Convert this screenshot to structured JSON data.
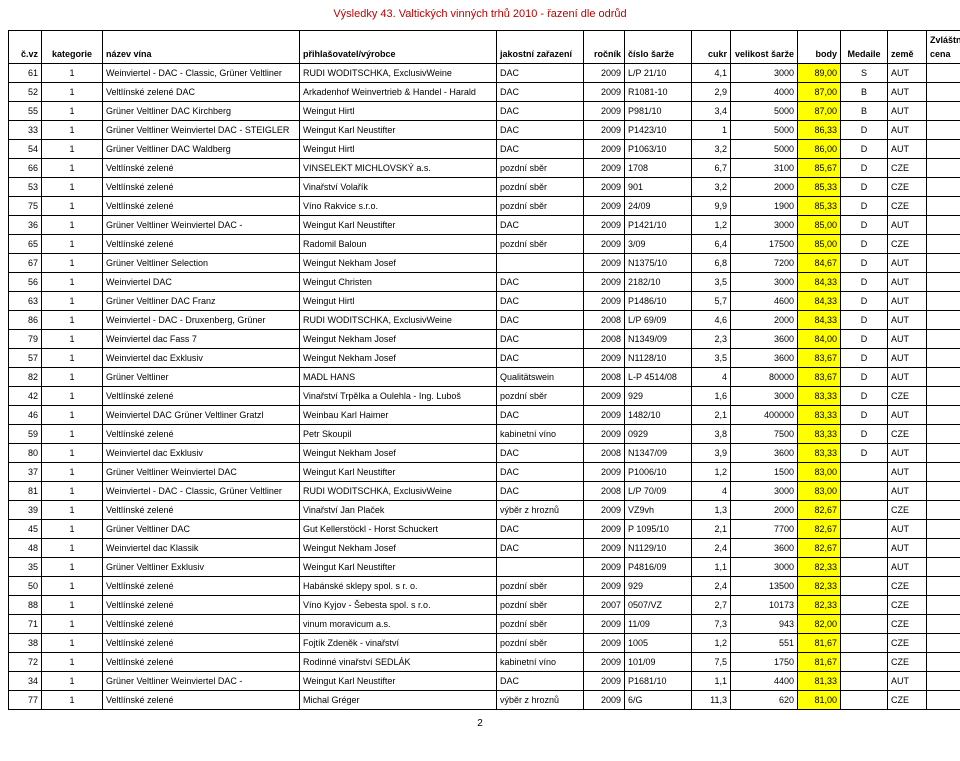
{
  "page_title": "Výsledky 43. Valtických vinných trhů 2010 - řazení dle odrůd",
  "page_number": "2",
  "colors": {
    "title_color": "#c00000",
    "body_cell_bg": "#ffff00",
    "border": "#000000"
  },
  "columns": [
    {
      "key": "cvz",
      "label": "č.vz",
      "class": "c-cvz"
    },
    {
      "key": "kat",
      "label": "kategorie",
      "class": "c-kat"
    },
    {
      "key": "nazev",
      "label": "název vína",
      "class": "c-nazev"
    },
    {
      "key": "prih",
      "label": "přihlašovatel/výrobce",
      "class": "c-prih"
    },
    {
      "key": "jak",
      "label": "jakostní zařazení",
      "class": "c-jak"
    },
    {
      "key": "roc",
      "label": "ročník",
      "class": "c-roc"
    },
    {
      "key": "sarz",
      "label": "číslo šarže",
      "class": "c-sarz"
    },
    {
      "key": "cukr",
      "label": "cukr",
      "class": "c-cukr"
    },
    {
      "key": "vel",
      "label": "velikost šarže",
      "class": "c-vel"
    },
    {
      "key": "body",
      "label": "body",
      "class": "c-body"
    },
    {
      "key": "med",
      "label": "Medaile",
      "class": "c-med"
    },
    {
      "key": "zeme",
      "label": "země",
      "class": "c-zeme"
    },
    {
      "key": "zvl",
      "label": "Zvláštní cena",
      "class": "c-zvl"
    }
  ],
  "rows": [
    {
      "cvz": "61",
      "kat": "1",
      "nazev": "Weinviertel - DAC - Classic, Grüner Veltliner",
      "prih": "RUDI WODITSCHKA, ExclusivWeine",
      "jak": "DAC",
      "roc": "2009",
      "sarz": "L/P 21/10",
      "cukr": "4,1",
      "vel": "3000",
      "body": "89,00",
      "med": "S",
      "zeme": "AUT",
      "zvl": ""
    },
    {
      "cvz": "52",
      "kat": "1",
      "nazev": "Veltlínské zelené DAC",
      "prih": "Arkadenhof Weinvertrieb & Handel - Harald",
      "jak": "DAC",
      "roc": "2009",
      "sarz": "R1081-10",
      "cukr": "2,9",
      "vel": "4000",
      "body": "87,00",
      "med": "B",
      "zeme": "AUT",
      "zvl": ""
    },
    {
      "cvz": "55",
      "kat": "1",
      "nazev": "Grüner Veltliner DAC Kirchberg",
      "prih": "Weingut Hirtl",
      "jak": "DAC",
      "roc": "2009",
      "sarz": "P981/10",
      "cukr": "3,4",
      "vel": "5000",
      "body": "87,00",
      "med": "B",
      "zeme": "AUT",
      "zvl": ""
    },
    {
      "cvz": "33",
      "kat": "1",
      "nazev": "Grüner Veltliner Weinviertel DAC - STEIGLER",
      "prih": "Weingut Karl Neustifter",
      "jak": "DAC",
      "roc": "2009",
      "sarz": "P1423/10",
      "cukr": "1",
      "vel": "5000",
      "body": "86,33",
      "med": "D",
      "zeme": "AUT",
      "zvl": ""
    },
    {
      "cvz": "54",
      "kat": "1",
      "nazev": "Grüner Veltliner DAC Waldberg",
      "prih": "Weingut Hirtl",
      "jak": "DAC",
      "roc": "2009",
      "sarz": "P1063/10",
      "cukr": "3,2",
      "vel": "5000",
      "body": "86,00",
      "med": "D",
      "zeme": "AUT",
      "zvl": ""
    },
    {
      "cvz": "66",
      "kat": "1",
      "nazev": "Veltlínské zelené",
      "prih": "VINSELEKT MICHLOVSKÝ a.s.",
      "jak": "pozdní sběr",
      "roc": "2009",
      "sarz": "1708",
      "cukr": "6,7",
      "vel": "3100",
      "body": "85,67",
      "med": "D",
      "zeme": "CZE",
      "zvl": ""
    },
    {
      "cvz": "53",
      "kat": "1",
      "nazev": "Veltlínské zelené",
      "prih": "Vinařství Volařík",
      "jak": "pozdní sběr",
      "roc": "2009",
      "sarz": "901",
      "cukr": "3,2",
      "vel": "2000",
      "body": "85,33",
      "med": "D",
      "zeme": "CZE",
      "zvl": ""
    },
    {
      "cvz": "75",
      "kat": "1",
      "nazev": "Veltlínské zelené",
      "prih": "Víno Rakvice s.r.o.",
      "jak": "pozdní sběr",
      "roc": "2009",
      "sarz": "24/09",
      "cukr": "9,9",
      "vel": "1900",
      "body": "85,33",
      "med": "D",
      "zeme": "CZE",
      "zvl": ""
    },
    {
      "cvz": "36",
      "kat": "1",
      "nazev": "Grüner Veltliner Weinviertel DAC -",
      "prih": "Weingut Karl Neustifter",
      "jak": "DAC",
      "roc": "2009",
      "sarz": "P1421/10",
      "cukr": "1,2",
      "vel": "3000",
      "body": "85,00",
      "med": "D",
      "zeme": "AUT",
      "zvl": ""
    },
    {
      "cvz": "65",
      "kat": "1",
      "nazev": "Veltlínské zelené",
      "prih": "Radomil Baloun",
      "jak": "pozdní sběr",
      "roc": "2009",
      "sarz": "3/09",
      "cukr": "6,4",
      "vel": "17500",
      "body": "85,00",
      "med": "D",
      "zeme": "CZE",
      "zvl": ""
    },
    {
      "cvz": "67",
      "kat": "1",
      "nazev": "Grüner Veltliner Selection",
      "prih": "Weingut Nekham Josef",
      "jak": "",
      "roc": "2009",
      "sarz": "N1375/10",
      "cukr": "6,8",
      "vel": "7200",
      "body": "84,67",
      "med": "D",
      "zeme": "AUT",
      "zvl": ""
    },
    {
      "cvz": "56",
      "kat": "1",
      "nazev": "Weinviertel DAC",
      "prih": "Weingut Christen",
      "jak": "DAC",
      "roc": "2009",
      "sarz": "2182/10",
      "cukr": "3,5",
      "vel": "3000",
      "body": "84,33",
      "med": "D",
      "zeme": "AUT",
      "zvl": ""
    },
    {
      "cvz": "63",
      "kat": "1",
      "nazev": "Grüner Veltliner DAC Franz",
      "prih": "Weingut Hirtl",
      "jak": "DAC",
      "roc": "2009",
      "sarz": "P1486/10",
      "cukr": "5,7",
      "vel": "4600",
      "body": "84,33",
      "med": "D",
      "zeme": "AUT",
      "zvl": ""
    },
    {
      "cvz": "86",
      "kat": "1",
      "nazev": "Weinviertel - DAC - Druxenberg, Grüner",
      "prih": "RUDI WODITSCHKA, ExclusivWeine",
      "jak": "DAC",
      "roc": "2008",
      "sarz": "L/P 69/09",
      "cukr": "4,6",
      "vel": "2000",
      "body": "84,33",
      "med": "D",
      "zeme": "AUT",
      "zvl": ""
    },
    {
      "cvz": "79",
      "kat": "1",
      "nazev": "Weinviertel dac Fass 7",
      "prih": "Weingut Nekham Josef",
      "jak": "DAC",
      "roc": "2008",
      "sarz": "N1349/09",
      "cukr": "2,3",
      "vel": "3600",
      "body": "84,00",
      "med": "D",
      "zeme": "AUT",
      "zvl": ""
    },
    {
      "cvz": "57",
      "kat": "1",
      "nazev": "Weinviertel dac Exklusiv",
      "prih": "Weingut Nekham Josef",
      "jak": "DAC",
      "roc": "2009",
      "sarz": "N1128/10",
      "cukr": "3,5",
      "vel": "3600",
      "body": "83,67",
      "med": "D",
      "zeme": "AUT",
      "zvl": ""
    },
    {
      "cvz": "82",
      "kat": "1",
      "nazev": "Grüner Veltliner",
      "prih": "MADL HANS",
      "jak": "Qualitätswein",
      "roc": "2008",
      "sarz": "L-P 4514/08",
      "cukr": "4",
      "vel": "80000",
      "body": "83,67",
      "med": "D",
      "zeme": "AUT",
      "zvl": ""
    },
    {
      "cvz": "42",
      "kat": "1",
      "nazev": "Veltlínské zelené",
      "prih": "Vinařství Trpělka a Oulehla - Ing. Luboš",
      "jak": "pozdní sběr",
      "roc": "2009",
      "sarz": "929",
      "cukr": "1,6",
      "vel": "3000",
      "body": "83,33",
      "med": "D",
      "zeme": "CZE",
      "zvl": ""
    },
    {
      "cvz": "46",
      "kat": "1",
      "nazev": "Weinviertel DAC Grüner Veltliner Gratzl",
      "prih": "Weinbau Karl Haimer",
      "jak": "DAC",
      "roc": "2009",
      "sarz": "1482/10",
      "cukr": "2,1",
      "vel": "400000",
      "body": "83,33",
      "med": "D",
      "zeme": "AUT",
      "zvl": ""
    },
    {
      "cvz": "59",
      "kat": "1",
      "nazev": "Veltlínské zelené",
      "prih": "Petr Skoupil",
      "jak": "kabinetní víno",
      "roc": "2009",
      "sarz": "0929",
      "cukr": "3,8",
      "vel": "7500",
      "body": "83,33",
      "med": "D",
      "zeme": "CZE",
      "zvl": ""
    },
    {
      "cvz": "80",
      "kat": "1",
      "nazev": "Weinviertel dac Exklusiv",
      "prih": "Weingut Nekham Josef",
      "jak": "DAC",
      "roc": "2008",
      "sarz": "N1347/09",
      "cukr": "3,9",
      "vel": "3600",
      "body": "83,33",
      "med": "D",
      "zeme": "AUT",
      "zvl": ""
    },
    {
      "cvz": "37",
      "kat": "1",
      "nazev": "Grüner Veltliner Weinviertel DAC",
      "prih": "Weingut Karl Neustifter",
      "jak": "DAC",
      "roc": "2009",
      "sarz": "P1006/10",
      "cukr": "1,2",
      "vel": "1500",
      "body": "83,00",
      "med": "",
      "zeme": "AUT",
      "zvl": ""
    },
    {
      "cvz": "81",
      "kat": "1",
      "nazev": "Weinviertel - DAC - Classic, Grüner Veltliner",
      "prih": "RUDI WODITSCHKA, ExclusivWeine",
      "jak": "DAC",
      "roc": "2008",
      "sarz": "L/P 70/09",
      "cukr": "4",
      "vel": "3000",
      "body": "83,00",
      "med": "",
      "zeme": "AUT",
      "zvl": ""
    },
    {
      "cvz": "39",
      "kat": "1",
      "nazev": "Veltlínské zelené",
      "prih": "Vinařství Jan Plaček",
      "jak": "výběr z hroznů",
      "roc": "2009",
      "sarz": "VZ9vh",
      "cukr": "1,3",
      "vel": "2000",
      "body": "82,67",
      "med": "",
      "zeme": "CZE",
      "zvl": ""
    },
    {
      "cvz": "45",
      "kat": "1",
      "nazev": "Grüner Veltliner DAC",
      "prih": "Gut Kellerstöckl - Horst Schuckert",
      "jak": "DAC",
      "roc": "2009",
      "sarz": "P 1095/10",
      "cukr": "2,1",
      "vel": "7700",
      "body": "82,67",
      "med": "",
      "zeme": "AUT",
      "zvl": ""
    },
    {
      "cvz": "48",
      "kat": "1",
      "nazev": "Weinviertel dac Klassik",
      "prih": "Weingut Nekham Josef",
      "jak": "DAC",
      "roc": "2009",
      "sarz": "N1129/10",
      "cukr": "2,4",
      "vel": "3600",
      "body": "82,67",
      "med": "",
      "zeme": "AUT",
      "zvl": ""
    },
    {
      "cvz": "35",
      "kat": "1",
      "nazev": "Grüner Veltliner Exklusiv",
      "prih": "Weingut Karl Neustifter",
      "jak": "",
      "roc": "2009",
      "sarz": "P4816/09",
      "cukr": "1,1",
      "vel": "3000",
      "body": "82,33",
      "med": "",
      "zeme": "AUT",
      "zvl": ""
    },
    {
      "cvz": "50",
      "kat": "1",
      "nazev": "Veltlínské zelené",
      "prih": "Habánské sklepy spol. s r. o.",
      "jak": "pozdní sběr",
      "roc": "2009",
      "sarz": "929",
      "cukr": "2,4",
      "vel": "13500",
      "body": "82,33",
      "med": "",
      "zeme": "CZE",
      "zvl": ""
    },
    {
      "cvz": "88",
      "kat": "1",
      "nazev": "Veltlínské zelené",
      "prih": "Víno Kyjov - Šebesta spol. s r.o.",
      "jak": "pozdní sběr",
      "roc": "2007",
      "sarz": "0507/VZ",
      "cukr": "2,7",
      "vel": "10173",
      "body": "82,33",
      "med": "",
      "zeme": "CZE",
      "zvl": ""
    },
    {
      "cvz": "71",
      "kat": "1",
      "nazev": "Veltlínské zelené",
      "prih": "vinum moravicum a.s.",
      "jak": "pozdní sběr",
      "roc": "2009",
      "sarz": "11/09",
      "cukr": "7,3",
      "vel": "943",
      "body": "82,00",
      "med": "",
      "zeme": "CZE",
      "zvl": ""
    },
    {
      "cvz": "38",
      "kat": "1",
      "nazev": "Veltlínské zelené",
      "prih": "Fojtík Zdeněk - vinařství",
      "jak": "pozdní sběr",
      "roc": "2009",
      "sarz": "1005",
      "cukr": "1,2",
      "vel": "551",
      "body": "81,67",
      "med": "",
      "zeme": "CZE",
      "zvl": ""
    },
    {
      "cvz": "72",
      "kat": "1",
      "nazev": "Veltlínské zelené",
      "prih": "Rodinné vinařství SEDLÁK",
      "jak": "kabinetní víno",
      "roc": "2009",
      "sarz": "101/09",
      "cukr": "7,5",
      "vel": "1750",
      "body": "81,67",
      "med": "",
      "zeme": "CZE",
      "zvl": ""
    },
    {
      "cvz": "34",
      "kat": "1",
      "nazev": "Grüner Veltliner Weinviertel DAC -",
      "prih": "Weingut Karl Neustifter",
      "jak": "DAC",
      "roc": "2009",
      "sarz": "P1681/10",
      "cukr": "1,1",
      "vel": "4400",
      "body": "81,33",
      "med": "",
      "zeme": "AUT",
      "zvl": ""
    },
    {
      "cvz": "77",
      "kat": "1",
      "nazev": "Veltlínské zelené",
      "prih": "Michal Gréger",
      "jak": "výběr z hroznů",
      "roc": "2009",
      "sarz": "6/G",
      "cukr": "11,3",
      "vel": "620",
      "body": "81,00",
      "med": "",
      "zeme": "CZE",
      "zvl": ""
    }
  ]
}
